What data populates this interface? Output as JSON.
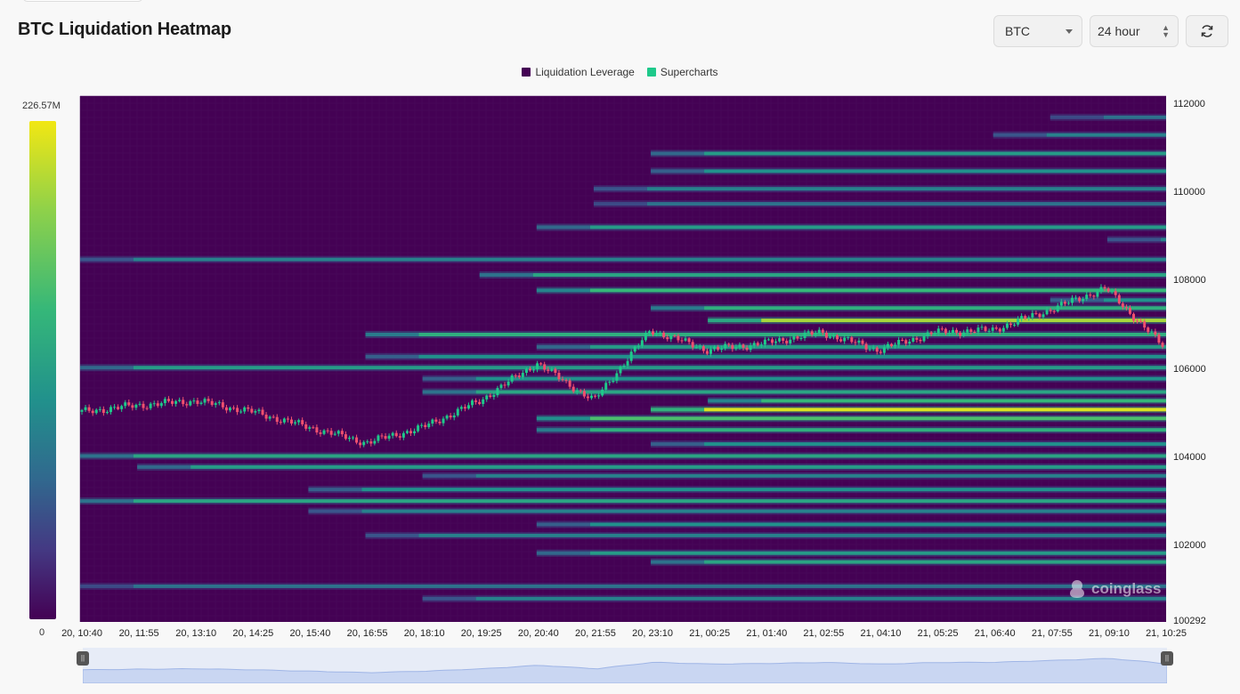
{
  "header": {
    "title": "BTC Liquidation Heatmap",
    "symbol_select": "BTC",
    "range_select": "24 hour",
    "refresh_icon": "refresh-icon"
  },
  "legend": {
    "items": [
      {
        "label": "Liquidation Leverage",
        "color": "#440154"
      },
      {
        "label": "Supercharts",
        "color": "#1ec98a"
      }
    ]
  },
  "colorbar": {
    "max_label": "226.57M",
    "min_label": "0"
  },
  "brand": {
    "text": "coinglass"
  },
  "chart_data": {
    "type": "heatmap",
    "title": "BTC Liquidation Heatmap",
    "x_ticks": [
      "20, 10:40",
      "20, 11:55",
      "20, 13:10",
      "20, 14:25",
      "20, 15:40",
      "20, 16:55",
      "20, 18:10",
      "20, 19:25",
      "20, 20:40",
      "20, 21:55",
      "20, 23:10",
      "21, 00:25",
      "21, 01:40",
      "21, 02:55",
      "21, 04:10",
      "21, 05:25",
      "21, 06:40",
      "21, 07:55",
      "21, 09:10",
      "21, 10:25"
    ],
    "y_ticks": [
      "112000",
      "110000",
      "108000",
      "106000",
      "104000",
      "102000",
      "100292"
    ],
    "y_range": [
      100292,
      112200
    ],
    "colorscale": {
      "min": 0,
      "max": 226570000,
      "unit": "USD",
      "palette": "viridis"
    },
    "liquidation_levels": [
      {
        "price": 111720,
        "start": "21, 07:55",
        "intensity": 0.3
      },
      {
        "price": 111320,
        "start": "21, 06:40",
        "intensity": 0.35
      },
      {
        "price": 110900,
        "start": "20, 23:10",
        "intensity": 0.45
      },
      {
        "price": 110500,
        "start": "20, 23:10",
        "intensity": 0.4
      },
      {
        "price": 110100,
        "start": "20, 21:55",
        "intensity": 0.35
      },
      {
        "price": 109760,
        "start": "20, 21:55",
        "intensity": 0.3
      },
      {
        "price": 109230,
        "start": "20, 20:40",
        "intensity": 0.45
      },
      {
        "price": 108950,
        "start": "21, 09:10",
        "intensity": 0.35
      },
      {
        "price": 108500,
        "start": "20, 10:40",
        "intensity": 0.35
      },
      {
        "price": 108150,
        "start": "20, 19:25",
        "intensity": 0.5
      },
      {
        "price": 107800,
        "start": "20, 20:40",
        "intensity": 0.6
      },
      {
        "price": 107580,
        "start": "21, 07:55",
        "intensity": 0.4
      },
      {
        "price": 107400,
        "start": "20, 23:10",
        "intensity": 0.55
      },
      {
        "price": 107120,
        "start": "21, 00:25",
        "intensity": 0.85
      },
      {
        "price": 106800,
        "start": "20, 16:55",
        "intensity": 0.55
      },
      {
        "price": 106520,
        "start": "20, 20:40",
        "intensity": 0.45
      },
      {
        "price": 106300,
        "start": "20, 16:55",
        "intensity": 0.4
      },
      {
        "price": 106050,
        "start": "20, 10:40",
        "intensity": 0.45
      },
      {
        "price": 105800,
        "start": "20, 18:10",
        "intensity": 0.4
      },
      {
        "price": 105500,
        "start": "20, 18:10",
        "intensity": 0.5
      },
      {
        "price": 105300,
        "start": "21, 00:25",
        "intensity": 0.6
      },
      {
        "price": 105100,
        "start": "20, 23:10",
        "intensity": 0.95
      },
      {
        "price": 104900,
        "start": "20, 20:40",
        "intensity": 0.65
      },
      {
        "price": 104640,
        "start": "20, 20:40",
        "intensity": 0.55
      },
      {
        "price": 104320,
        "start": "20, 23:10",
        "intensity": 0.4
      },
      {
        "price": 104050,
        "start": "20, 10:40",
        "intensity": 0.5
      },
      {
        "price": 103800,
        "start": "20, 11:55",
        "intensity": 0.45
      },
      {
        "price": 103600,
        "start": "20, 18:10",
        "intensity": 0.35
      },
      {
        "price": 103290,
        "start": "20, 15:40",
        "intensity": 0.4
      },
      {
        "price": 103030,
        "start": "20, 10:40",
        "intensity": 0.5
      },
      {
        "price": 102800,
        "start": "20, 15:40",
        "intensity": 0.35
      },
      {
        "price": 102500,
        "start": "20, 20:40",
        "intensity": 0.4
      },
      {
        "price": 102250,
        "start": "20, 16:55",
        "intensity": 0.35
      },
      {
        "price": 101850,
        "start": "20, 20:40",
        "intensity": 0.45
      },
      {
        "price": 101650,
        "start": "20, 23:10",
        "intensity": 0.5
      },
      {
        "price": 101100,
        "start": "20, 10:40",
        "intensity": 0.3
      },
      {
        "price": 100820,
        "start": "20, 18:10",
        "intensity": 0.35
      }
    ],
    "price_series": {
      "name": "Supercharts",
      "x": [
        "20, 10:40",
        "20, 11:55",
        "20, 13:10",
        "20, 14:25",
        "20, 15:40",
        "20, 16:55",
        "20, 18:10",
        "20, 19:25",
        "20, 20:40",
        "20, 21:55",
        "20, 23:10",
        "21, 00:25",
        "21, 01:40",
        "21, 02:55",
        "21, 04:10",
        "21, 05:25",
        "21, 06:40",
        "21, 07:55",
        "21, 09:10",
        "21, 10:25"
      ],
      "close": [
        105050,
        105200,
        105300,
        105050,
        104700,
        104350,
        104700,
        105300,
        106150,
        105300,
        106900,
        106450,
        106600,
        106850,
        106450,
        106850,
        106900,
        107350,
        107850,
        106550
      ]
    }
  }
}
